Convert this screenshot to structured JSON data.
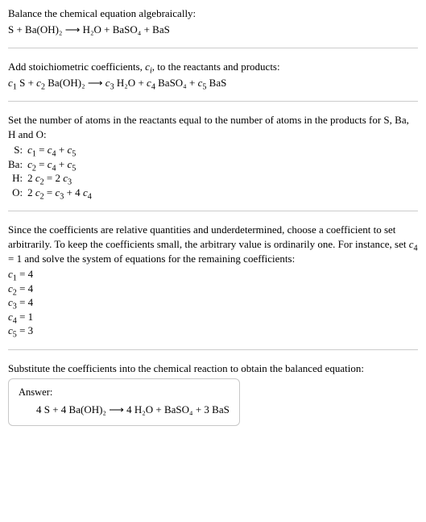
{
  "s1": {
    "line1": "Balance the chemical equation algebraically:",
    "line2": "S + Ba(OH)₂  ⟶  H₂O + BaSO₄ + BaS"
  },
  "s2": {
    "line1_pre": "Add stoichiometric coefficients, ",
    "line1_ci": "c",
    "line1_ci_sub": "i",
    "line1_post": ", to the reactants and products:",
    "eq_c1": "c",
    "eq_c1s": "1",
    "eq_t1": " S + ",
    "eq_c2": "c",
    "eq_c2s": "2",
    "eq_t2": " Ba(OH)₂  ⟶  ",
    "eq_c3": "c",
    "eq_c3s": "3",
    "eq_t3": " H₂O + ",
    "eq_c4": "c",
    "eq_c4s": "4",
    "eq_t4": " BaSO₄ + ",
    "eq_c5": "c",
    "eq_c5s": "5",
    "eq_t5": " BaS"
  },
  "s3": {
    "intro": "Set the number of atoms in the reactants equal to the number of atoms in the products for S, Ba, H and O:",
    "rows": [
      {
        "el": "S:",
        "lhs_v": "c",
        "lhs_s": "1",
        "mid": " = ",
        "r1_v": "c",
        "r1_s": "4",
        "plus": " + ",
        "r2_v": "c",
        "r2_s": "5"
      },
      {
        "el": "Ba:",
        "lhs_v": "c",
        "lhs_s": "2",
        "mid": " = ",
        "r1_v": "c",
        "r1_s": "4",
        "plus": " + ",
        "r2_v": "c",
        "r2_s": "5"
      }
    ],
    "rowH": {
      "el": "H:",
      "l_pre": "2 ",
      "l_v": "c",
      "l_s": "2",
      "mid": " = 2 ",
      "r_v": "c",
      "r_s": "3"
    },
    "rowO": {
      "el": "O:",
      "l_pre": "2 ",
      "l_v": "c",
      "l_s": "2",
      "mid": " = ",
      "m_v": "c",
      "m_s": "3",
      "plus": " + 4 ",
      "r_v": "c",
      "r_s": "4"
    }
  },
  "s4": {
    "para_a": "Since the coefficients are relative quantities and underdetermined, choose a coefficient to set arbitrarily. To keep the coefficients small, the arbitrary value is ordinarily one. For instance, set ",
    "para_cv": "c",
    "para_cs": "4",
    "para_b": " = 1 and solve the system of equations for the remaining coefficients:",
    "coeffs": [
      {
        "v": "c",
        "s": "1",
        "rhs": " = 4"
      },
      {
        "v": "c",
        "s": "2",
        "rhs": " = 4"
      },
      {
        "v": "c",
        "s": "3",
        "rhs": " = 4"
      },
      {
        "v": "c",
        "s": "4",
        "rhs": " = 1"
      },
      {
        "v": "c",
        "s": "5",
        "rhs": " = 3"
      }
    ]
  },
  "s5": {
    "intro": "Substitute the coefficients into the chemical reaction to obtain the balanced equation:",
    "answer_label": "Answer:",
    "answer_eq": "4 S + 4 Ba(OH)₂  ⟶  4 H₂O + BaSO₄ + 3 BaS"
  }
}
